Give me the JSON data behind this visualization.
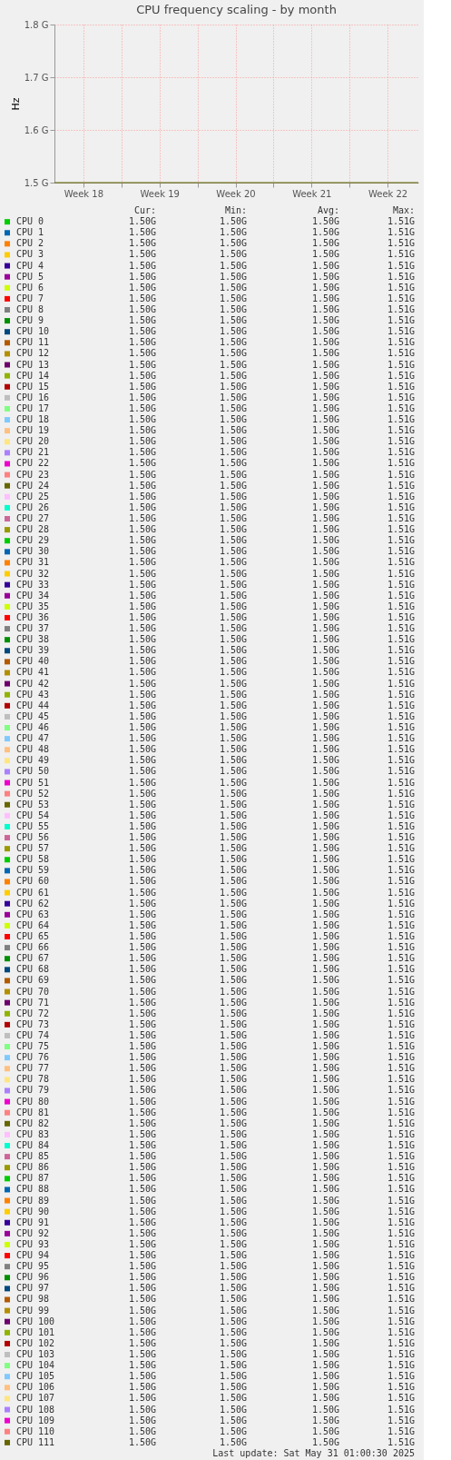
{
  "chart_data": {
    "type": "line",
    "title": "CPU frequency scaling - by month",
    "ylabel": "Hz",
    "legend": "bottom",
    "grid": true,
    "line_style": "solid",
    "marker": "none",
    "x": [
      "2025-04-27T20:00",
      "2025-05-31T08:00"
    ],
    "xlim": [
      "2025-04-27T20:00",
      "2025-05-31T08:00"
    ],
    "xticks": [
      {
        "value": "2025-04-30T12:00",
        "label": "Week 18"
      },
      {
        "value": "2025-05-04T00:00",
        "label": null
      },
      {
        "value": "2025-05-07T12:00",
        "label": "Week 19"
      },
      {
        "value": "2025-05-11T00:00",
        "label": null
      },
      {
        "value": "2025-05-14T12:00",
        "label": "Week 20"
      },
      {
        "value": "2025-05-18T00:00",
        "label": null
      },
      {
        "value": "2025-05-21T12:00",
        "label": "Week 21"
      },
      {
        "value": "2025-05-25T00:00",
        "label": null
      },
      {
        "value": "2025-05-28T12:00",
        "label": "Week 22"
      }
    ],
    "ylim": [
      1.5,
      1.8
    ],
    "yticks": [
      {
        "value": 1.5,
        "label": "1.5 G"
      },
      {
        "value": 1.6,
        "label": "1.6 G"
      },
      {
        "value": 1.7,
        "label": "1.7 G"
      },
      {
        "value": 1.8,
        "label": "1.8 G"
      }
    ],
    "series": [
      {
        "name": "CPU 0",
        "color": "#00cc00",
        "values": [
          null,
          null
        ]
      },
      {
        "name": "CPU 1",
        "color": "#0066b3",
        "values": [
          null,
          null
        ]
      },
      {
        "name": "CPU 2",
        "color": "#ff8000",
        "values": [
          null,
          null
        ]
      },
      {
        "name": "CPU 3",
        "color": "#ffcc00",
        "values": [
          null,
          null
        ]
      },
      {
        "name": "CPU 4",
        "color": "#330099",
        "values": [
          null,
          null
        ]
      },
      {
        "name": "CPU 5",
        "color": "#990099",
        "values": [
          null,
          null
        ]
      },
      {
        "name": "CPU 6",
        "color": "#ccff00",
        "values": [
          null,
          null
        ]
      },
      {
        "name": "CPU 7",
        "color": "#ff0000",
        "values": [
          null,
          null
        ]
      },
      {
        "name": "CPU 8",
        "color": "#808080",
        "values": [
          null,
          null
        ]
      },
      {
        "name": "CPU 9",
        "color": "#008f00",
        "values": [
          null,
          null
        ]
      },
      {
        "name": "CPU 10",
        "color": "#00487d",
        "values": [
          null,
          null
        ]
      },
      {
        "name": "CPU 11",
        "color": "#b35a00",
        "values": [
          null,
          null
        ]
      },
      {
        "name": "CPU 12",
        "color": "#b38f00",
        "values": [
          null,
          null
        ]
      },
      {
        "name": "CPU 13",
        "color": "#6b006b",
        "values": [
          null,
          null
        ]
      },
      {
        "name": "CPU 14",
        "color": "#8fb300",
        "values": [
          null,
          null
        ]
      },
      {
        "name": "CPU 15",
        "color": "#b30000",
        "values": [
          null,
          null
        ]
      },
      {
        "name": "CPU 16",
        "color": "#bebebe",
        "values": [
          null,
          null
        ]
      },
      {
        "name": "CPU 17",
        "color": "#80ff80",
        "values": [
          null,
          null
        ]
      },
      {
        "name": "CPU 18",
        "color": "#80c9ff",
        "values": [
          null,
          null
        ]
      },
      {
        "name": "CPU 19",
        "color": "#ffc080",
        "values": [
          null,
          null
        ]
      },
      {
        "name": "CPU 20",
        "color": "#ffe680",
        "values": [
          null,
          null
        ]
      },
      {
        "name": "CPU 21",
        "color": "#aa80ff",
        "values": [
          null,
          null
        ]
      },
      {
        "name": "CPU 22",
        "color": "#ee00cc",
        "values": [
          null,
          null
        ]
      },
      {
        "name": "CPU 23",
        "color": "#ff8080",
        "values": [
          null,
          null
        ]
      },
      {
        "name": "CPU 24",
        "color": "#666600",
        "values": [
          null,
          null
        ]
      },
      {
        "name": "CPU 25",
        "color": "#ffbfff",
        "values": [
          null,
          null
        ]
      },
      {
        "name": "CPU 26",
        "color": "#00ffcc",
        "values": [
          null,
          null
        ]
      },
      {
        "name": "CPU 27",
        "color": "#cc6699",
        "values": [
          null,
          null
        ]
      },
      {
        "name": "CPU 28",
        "color": "#999900",
        "values": [
          null,
          null
        ]
      },
      {
        "name": "CPU 29",
        "color": "#00cc00",
        "values": [
          null,
          null
        ]
      },
      {
        "name": "CPU 30",
        "color": "#0066b3",
        "values": [
          null,
          null
        ]
      },
      {
        "name": "CPU 31",
        "color": "#ff8000",
        "values": [
          null,
          null
        ]
      },
      {
        "name": "CPU 32",
        "color": "#ffcc00",
        "values": [
          null,
          null
        ]
      },
      {
        "name": "CPU 33",
        "color": "#330099",
        "values": [
          null,
          null
        ]
      },
      {
        "name": "CPU 34",
        "color": "#990099",
        "values": [
          null,
          null
        ]
      },
      {
        "name": "CPU 35",
        "color": "#ccff00",
        "values": [
          null,
          null
        ]
      },
      {
        "name": "CPU 36",
        "color": "#ff0000",
        "values": [
          null,
          null
        ]
      },
      {
        "name": "CPU 37",
        "color": "#808080",
        "values": [
          null,
          null
        ]
      },
      {
        "name": "CPU 38",
        "color": "#008f00",
        "values": [
          null,
          null
        ]
      },
      {
        "name": "CPU 39",
        "color": "#00487d",
        "values": [
          null,
          null
        ]
      },
      {
        "name": "CPU 40",
        "color": "#b35a00",
        "values": [
          null,
          null
        ]
      },
      {
        "name": "CPU 41",
        "color": "#b38f00",
        "values": [
          null,
          null
        ]
      },
      {
        "name": "CPU 42",
        "color": "#6b006b",
        "values": [
          null,
          null
        ]
      },
      {
        "name": "CPU 43",
        "color": "#8fb300",
        "values": [
          null,
          null
        ]
      },
      {
        "name": "CPU 44",
        "color": "#b30000",
        "values": [
          null,
          null
        ]
      },
      {
        "name": "CPU 45",
        "color": "#bebebe",
        "values": [
          null,
          null
        ]
      },
      {
        "name": "CPU 46",
        "color": "#80ff80",
        "values": [
          null,
          null
        ]
      },
      {
        "name": "CPU 47",
        "color": "#80c9ff",
        "values": [
          null,
          null
        ]
      },
      {
        "name": "CPU 48",
        "color": "#ffc080",
        "values": [
          null,
          null
        ]
      },
      {
        "name": "CPU 49",
        "color": "#ffe680",
        "values": [
          null,
          null
        ]
      },
      {
        "name": "CPU 50",
        "color": "#aa80ff",
        "values": [
          null,
          null
        ]
      },
      {
        "name": "CPU 51",
        "color": "#ee00cc",
        "values": [
          null,
          null
        ]
      },
      {
        "name": "CPU 52",
        "color": "#ff8080",
        "values": [
          null,
          null
        ]
      },
      {
        "name": "CPU 53",
        "color": "#666600",
        "values": [
          null,
          null
        ]
      },
      {
        "name": "CPU 54",
        "color": "#ffbfff",
        "values": [
          null,
          null
        ]
      },
      {
        "name": "CPU 55",
        "color": "#00ffcc",
        "values": [
          null,
          null
        ]
      },
      {
        "name": "CPU 56",
        "color": "#cc6699",
        "values": [
          null,
          null
        ]
      },
      {
        "name": "CPU 57",
        "color": "#999900",
        "values": [
          null,
          null
        ]
      },
      {
        "name": "CPU 58",
        "color": "#00cc00",
        "values": [
          null,
          null
        ]
      },
      {
        "name": "CPU 59",
        "color": "#0066b3",
        "values": [
          null,
          null
        ]
      },
      {
        "name": "CPU 60",
        "color": "#ff8000",
        "values": [
          null,
          null
        ]
      },
      {
        "name": "CPU 61",
        "color": "#ffcc00",
        "values": [
          null,
          null
        ]
      },
      {
        "name": "CPU 62",
        "color": "#330099",
        "values": [
          null,
          null
        ]
      },
      {
        "name": "CPU 63",
        "color": "#990099",
        "values": [
          null,
          null
        ]
      },
      {
        "name": "CPU 64",
        "color": "#ccff00",
        "values": [
          null,
          null
        ]
      },
      {
        "name": "CPU 65",
        "color": "#ff0000",
        "values": [
          null,
          null
        ]
      },
      {
        "name": "CPU 66",
        "color": "#808080",
        "values": [
          null,
          null
        ]
      },
      {
        "name": "CPU 67",
        "color": "#008f00",
        "values": [
          null,
          null
        ]
      },
      {
        "name": "CPU 68",
        "color": "#00487d",
        "values": [
          null,
          null
        ]
      },
      {
        "name": "CPU 69",
        "color": "#b35a00",
        "values": [
          null,
          null
        ]
      },
      {
        "name": "CPU 70",
        "color": "#b38f00",
        "values": [
          null,
          null
        ]
      },
      {
        "name": "CPU 71",
        "color": "#6b006b",
        "values": [
          null,
          null
        ]
      },
      {
        "name": "CPU 72",
        "color": "#8fb300",
        "values": [
          null,
          null
        ]
      },
      {
        "name": "CPU 73",
        "color": "#b30000",
        "values": [
          null,
          null
        ]
      },
      {
        "name": "CPU 74",
        "color": "#bebebe",
        "values": [
          null,
          null
        ]
      },
      {
        "name": "CPU 75",
        "color": "#80ff80",
        "values": [
          null,
          null
        ]
      },
      {
        "name": "CPU 76",
        "color": "#80c9ff",
        "values": [
          null,
          null
        ]
      },
      {
        "name": "CPU 77",
        "color": "#ffc080",
        "values": [
          null,
          null
        ]
      },
      {
        "name": "CPU 78",
        "color": "#ffe680",
        "values": [
          null,
          null
        ]
      },
      {
        "name": "CPU 79",
        "color": "#aa80ff",
        "values": [
          null,
          null
        ]
      },
      {
        "name": "CPU 80",
        "color": "#ee00cc",
        "values": [
          null,
          null
        ]
      },
      {
        "name": "CPU 81",
        "color": "#ff8080",
        "values": [
          null,
          null
        ]
      },
      {
        "name": "CPU 82",
        "color": "#666600",
        "values": [
          null,
          null
        ]
      },
      {
        "name": "CPU 83",
        "color": "#ffbfff",
        "values": [
          null,
          null
        ]
      },
      {
        "name": "CPU 84",
        "color": "#00ffcc",
        "values": [
          null,
          null
        ]
      },
      {
        "name": "CPU 85",
        "color": "#cc6699",
        "values": [
          null,
          null
        ]
      },
      {
        "name": "CPU 86",
        "color": "#999900",
        "values": [
          null,
          null
        ]
      },
      {
        "name": "CPU 87",
        "color": "#00cc00",
        "values": [
          null,
          null
        ]
      },
      {
        "name": "CPU 88",
        "color": "#0066b3",
        "values": [
          null,
          null
        ]
      },
      {
        "name": "CPU 89",
        "color": "#ff8000",
        "values": [
          null,
          null
        ]
      },
      {
        "name": "CPU 90",
        "color": "#ffcc00",
        "values": [
          null,
          null
        ]
      },
      {
        "name": "CPU 91",
        "color": "#330099",
        "values": [
          null,
          null
        ]
      },
      {
        "name": "CPU 92",
        "color": "#990099",
        "values": [
          null,
          null
        ]
      },
      {
        "name": "CPU 93",
        "color": "#ccff00",
        "values": [
          null,
          null
        ]
      },
      {
        "name": "CPU 94",
        "color": "#ff0000",
        "values": [
          null,
          null
        ]
      },
      {
        "name": "CPU 95",
        "color": "#808080",
        "values": [
          null,
          null
        ]
      },
      {
        "name": "CPU 96",
        "color": "#008f00",
        "values": [
          null,
          null
        ]
      },
      {
        "name": "CPU 97",
        "color": "#00487d",
        "values": [
          null,
          null
        ]
      },
      {
        "name": "CPU 98",
        "color": "#b35a00",
        "values": [
          null,
          null
        ]
      },
      {
        "name": "CPU 99",
        "color": "#b38f00",
        "values": [
          null,
          null
        ]
      },
      {
        "name": "CPU 100",
        "color": "#6b006b",
        "values": [
          null,
          null
        ]
      },
      {
        "name": "CPU 101",
        "color": "#8fb300",
        "values": [
          null,
          null
        ]
      },
      {
        "name": "CPU 102",
        "color": "#b30000",
        "values": [
          null,
          null
        ]
      },
      {
        "name": "CPU 103",
        "color": "#bebebe",
        "values": [
          null,
          null
        ]
      },
      {
        "name": "CPU 104",
        "color": "#80ff80",
        "values": [
          null,
          null
        ]
      },
      {
        "name": "CPU 105",
        "color": "#80c9ff",
        "values": [
          null,
          null
        ]
      },
      {
        "name": "CPU 106",
        "color": "#ffc080",
        "values": [
          null,
          null
        ]
      },
      {
        "name": "CPU 107",
        "color": "#ffe680",
        "values": [
          null,
          null
        ]
      },
      {
        "name": "CPU 108",
        "color": "#aa80ff",
        "values": [
          null,
          null
        ]
      },
      {
        "name": "CPU 109",
        "color": "#ee00cc",
        "values": [
          null,
          null
        ]
      },
      {
        "name": "CPU 110",
        "color": "#ff8080",
        "values": [
          null,
          null
        ]
      },
      {
        "name": "CPU 111",
        "color": "#666600",
        "values": [
          1.5,
          1.5
        ]
      }
    ],
    "annotations": [
      "Cur:",
      "Min:",
      "Avg:",
      "Max:",
      "1.50G",
      "1.50G",
      "1.50G",
      "1.51G",
      "1.50G",
      "1.50G",
      "1.50G",
      "1.51G",
      "1.50G",
      "1.50G",
      "1.50G",
      "1.51G",
      "1.50G",
      "1.50G",
      "1.50G",
      "1.51G",
      "1.50G",
      "1.50G",
      "1.50G",
      "1.51G",
      "1.50G",
      "1.50G",
      "1.50G",
      "1.51G",
      "1.50G",
      "1.50G",
      "1.50G",
      "1.51G",
      "1.50G",
      "1.50G",
      "1.50G",
      "1.51G",
      "1.50G",
      "1.50G",
      "1.50G",
      "1.51G",
      "1.50G",
      "1.50G",
      "1.50G",
      "1.51G",
      "1.50G",
      "1.50G",
      "1.50G",
      "1.51G",
      "1.50G",
      "1.50G",
      "1.50G",
      "1.51G",
      "1.50G",
      "1.50G",
      "1.50G",
      "1.51G",
      "1.50G",
      "1.50G",
      "1.50G",
      "1.51G",
      "1.50G",
      "1.50G",
      "1.50G",
      "1.51G",
      "1.50G",
      "1.50G",
      "1.50G",
      "1.51G",
      "1.50G",
      "1.50G",
      "1.50G",
      "1.51G",
      "1.50G",
      "1.50G",
      "1.50G",
      "1.51G",
      "1.50G",
      "1.50G",
      "1.50G",
      "1.51G",
      "1.50G",
      "1.50G",
      "1.50G",
      "1.51G",
      "1.50G",
      "1.50G",
      "1.50G",
      "1.51G",
      "1.50G",
      "1.50G",
      "1.50G",
      "1.51G",
      "1.50G",
      "1.50G",
      "1.50G",
      "1.51G",
      "1.50G",
      "1.50G",
      "1.50G",
      "1.51G",
      "1.50G",
      "1.50G",
      "1.50G",
      "1.51G",
      "1.50G",
      "1.50G",
      "1.50G",
      "1.51G",
      "1.50G",
      "1.50G",
      "1.50G",
      "1.51G",
      "1.50G",
      "1.50G",
      "1.50G",
      "1.51G",
      "1.50G",
      "1.50G",
      "1.50G",
      "1.51G",
      "1.50G",
      "1.50G",
      "1.50G",
      "1.51G",
      "1.50G",
      "1.50G",
      "1.50G",
      "1.51G",
      "1.50G",
      "1.50G",
      "1.50G",
      "1.51G",
      "1.50G",
      "1.50G",
      "1.50G",
      "1.51G",
      "1.50G",
      "1.50G",
      "1.50G",
      "1.51G",
      "1.50G",
      "1.50G",
      "1.50G",
      "1.51G",
      "1.50G",
      "1.50G",
      "1.50G",
      "1.51G",
      "1.50G",
      "1.50G",
      "1.50G",
      "1.51G",
      "1.50G",
      "1.50G",
      "1.50G",
      "1.51G",
      "1.50G",
      "1.50G",
      "1.50G",
      "1.51G",
      "1.50G",
      "1.50G",
      "1.50G",
      "1.51G",
      "1.50G",
      "1.50G",
      "1.50G",
      "1.51G",
      "1.50G",
      "1.50G",
      "1.50G",
      "1.51G",
      "1.50G",
      "1.50G",
      "1.50G",
      "1.51G",
      "1.50G",
      "1.50G",
      "1.50G",
      "1.51G",
      "1.50G",
      "1.50G",
      "1.50G",
      "1.51G",
      "1.50G",
      "1.50G",
      "1.50G",
      "1.51G",
      "1.50G",
      "1.50G",
      "1.50G",
      "1.51G",
      "1.50G",
      "1.50G",
      "1.50G",
      "1.51G",
      "1.50G",
      "1.50G",
      "1.50G",
      "1.51G",
      "1.50G",
      "1.50G",
      "1.50G",
      "1.51G",
      "1.50G",
      "1.50G",
      "1.50G",
      "1.51G",
      "1.50G",
      "1.50G",
      "1.50G",
      "1.51G",
      "1.50G",
      "1.50G",
      "1.50G",
      "1.51G",
      "1.50G",
      "1.50G",
      "1.50G",
      "1.51G",
      "1.50G",
      "1.50G",
      "1.50G",
      "1.51G",
      "1.50G",
      "1.50G",
      "1.50G",
      "1.51G",
      "1.50G",
      "1.50G",
      "1.50G",
      "1.51G",
      "1.50G",
      "1.50G",
      "1.50G",
      "1.51G",
      "1.50G",
      "1.50G",
      "1.50G",
      "1.51G",
      "1.50G",
      "1.50G",
      "1.50G",
      "1.51G",
      "1.50G",
      "1.50G",
      "1.50G",
      "1.51G",
      "1.50G",
      "1.50G",
      "1.50G",
      "1.51G",
      "1.50G",
      "1.50G",
      "1.50G",
      "1.51G",
      "1.50G",
      "1.50G",
      "1.50G",
      "1.51G",
      "1.50G",
      "1.50G",
      "1.50G",
      "1.51G",
      "1.50G",
      "1.50G",
      "1.50G",
      "1.51G",
      "1.50G",
      "1.50G",
      "1.50G",
      "1.51G",
      "1.50G",
      "1.50G",
      "1.50G",
      "1.51G",
      "1.50G",
      "1.50G",
      "1.50G",
      "1.51G",
      "1.50G",
      "1.50G",
      "1.50G",
      "1.51G",
      "1.50G",
      "1.50G",
      "1.50G",
      "1.51G",
      "1.50G",
      "1.50G",
      "1.50G",
      "1.51G",
      "1.50G",
      "1.50G",
      "1.50G",
      "1.51G",
      "1.50G",
      "1.50G",
      "1.50G",
      "1.51G",
      "1.50G",
      "1.50G",
      "1.50G",
      "1.51G",
      "1.50G",
      "1.50G",
      "1.50G",
      "1.51G",
      "1.50G",
      "1.50G",
      "1.50G",
      "1.51G",
      "1.50G",
      "1.50G",
      "1.50G",
      "1.51G",
      "1.50G",
      "1.50G",
      "1.50G",
      "1.51G",
      "1.50G",
      "1.50G",
      "1.50G",
      "1.51G",
      "1.50G",
      "1.50G",
      "1.50G",
      "1.51G",
      "1.50G",
      "1.50G",
      "1.50G",
      "1.51G",
      "1.50G",
      "1.50G",
      "1.50G",
      "1.51G",
      "1.50G",
      "1.50G",
      "1.50G",
      "1.51G",
      "1.50G",
      "1.50G",
      "1.50G",
      "1.51G",
      "1.50G",
      "1.50G",
      "1.50G",
      "1.51G",
      "1.50G",
      "1.50G",
      "1.50G",
      "1.51G",
      "1.50G",
      "1.50G",
      "1.50G",
      "1.51G",
      "1.50G",
      "1.50G",
      "1.50G",
      "1.51G",
      "1.50G",
      "1.50G",
      "1.50G",
      "1.51G",
      "1.50G",
      "1.50G",
      "1.50G",
      "1.51G",
      "1.50G",
      "1.50G",
      "1.50G",
      "1.51G",
      "1.50G",
      "1.50G",
      "1.50G",
      "1.51G",
      "1.50G",
      "1.50G",
      "1.50G",
      "1.51G",
      "1.50G",
      "1.50G",
      "1.50G",
      "1.51G",
      "1.50G",
      "1.50G",
      "1.50G",
      "1.51G",
      "1.50G",
      "1.50G",
      "1.50G",
      "1.51G",
      "1.50G",
      "1.50G",
      "1.50G",
      "1.51G",
      "1.50G",
      "1.50G",
      "1.50G",
      "1.51G",
      "1.50G",
      "1.50G",
      "1.50G",
      "1.51G",
      "1.50G",
      "1.50G",
      "1.50G",
      "1.51G",
      "1.50G",
      "1.50G",
      "1.50G",
      "1.51G",
      "1.50G",
      "1.50G",
      "1.50G",
      "1.51G",
      "1.50G",
      "1.50G",
      "1.50G",
      "1.51G",
      "1.50G",
      "1.50G",
      "1.50G",
      "1.51G",
      "1.50G",
      "1.50G",
      "1.50G",
      "1.51G",
      "1.50G",
      "1.50G",
      "1.50G",
      "1.51G",
      "1.50G",
      "1.50G",
      "1.50G",
      "1.51G",
      "1.50G",
      "1.50G",
      "1.50G",
      "1.51G",
      "1.50G",
      "1.50G",
      "1.50G",
      "1.51G",
      "1.50G",
      "1.50G",
      "1.50G",
      "1.51G",
      "1.50G",
      "1.50G",
      "1.50G",
      "1.51G",
      "Last update: Sat May 31 01:00:30 2025"
    ]
  }
}
